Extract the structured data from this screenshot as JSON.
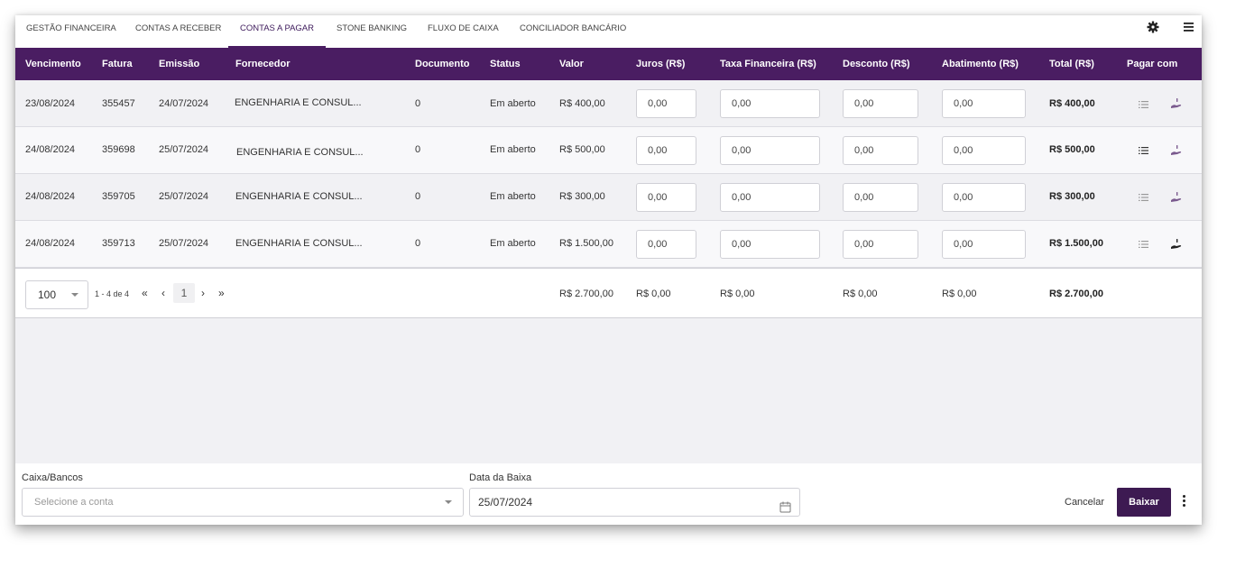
{
  "tabs": [
    {
      "label": "GESTÃO FINANCEIRA",
      "active": false
    },
    {
      "label": "CONTAS A RECEBER",
      "active": false
    },
    {
      "label": "CONTAS A PAGAR",
      "active": true
    },
    {
      "label": "STONE BANKING",
      "active": false
    },
    {
      "label": "FLUXO DE CAIXA",
      "active": false
    },
    {
      "label": "CONCILIADOR BANCÁRIO",
      "active": false
    }
  ],
  "toolbar_icons": [
    "gear-icon",
    "menu-icon"
  ],
  "table": {
    "columns": [
      "Vencimento",
      "Fatura",
      "Emissão",
      "Fornecedor",
      "Documento",
      "Status",
      "Valor",
      "Juros (R$)",
      "Taxa Financeira (R$)",
      "Desconto (R$)",
      "Abatimento (R$)",
      "Total (R$)",
      "Pagar com"
    ],
    "rows": [
      {
        "vencimento": "23/08/2024",
        "fatura": "355457",
        "emissao": "24/07/2024",
        "fornecedor": "ENGENHARIA E CONSUL...",
        "documento": "0",
        "status": "Em aberto",
        "valor": "R$ 400,00",
        "juros": "0,00",
        "taxa": "0,00",
        "desconto": "0,00",
        "abatimento": "0,00",
        "total": "R$ 400,00"
      },
      {
        "vencimento": "24/08/2024",
        "fatura": "359698",
        "emissao": "25/07/2024",
        "fornecedor": "ENGENHARIA E CONSUL...",
        "documento": "0",
        "status": "Em aberto",
        "valor": "R$ 500,00",
        "juros": "0,00",
        "taxa": "0,00",
        "desconto": "0,00",
        "abatimento": "0,00",
        "total": "R$ 500,00"
      },
      {
        "vencimento": "24/08/2024",
        "fatura": "359705",
        "emissao": "25/07/2024",
        "fornecedor": "ENGENHARIA E CONSUL...",
        "documento": "0",
        "status": "Em aberto",
        "valor": "R$ 300,00",
        "juros": "0,00",
        "taxa": "0,00",
        "desconto": "0,00",
        "abatimento": "0,00",
        "total": "R$ 300,00"
      },
      {
        "vencimento": "24/08/2024",
        "fatura": "359713",
        "emissao": "25/07/2024",
        "fornecedor": "ENGENHARIA E CONSUL...",
        "documento": "0",
        "status": "Em aberto",
        "valor": "R$ 1.500,00",
        "juros": "0,00",
        "taxa": "0,00",
        "desconto": "0,00",
        "abatimento": "0,00",
        "total": "R$ 1.500,00"
      }
    ]
  },
  "pagination": {
    "page_size": "100",
    "range": "1 - 4 de 4",
    "first": "«",
    "prev": "‹",
    "current": "1",
    "next": "›",
    "last": "»"
  },
  "totals": {
    "valor": "R$ 2.700,00",
    "juros": "R$ 0,00",
    "taxa": "R$ 0,00",
    "desconto": "R$ 0,00",
    "abatimento": "R$ 0,00",
    "total": "R$ 2.700,00"
  },
  "footer": {
    "caixa_label": "Caixa/Bancos",
    "caixa_placeholder": "Selecione a conta",
    "data_label": "Data da Baixa",
    "data_value": "25/07/2024",
    "cancel_label": "Cancelar",
    "baixar_label": "Baixar"
  },
  "colors": {
    "header_bg": "#4a1d62",
    "primary_button": "#3d1a52",
    "accent": "#4a1d62"
  }
}
